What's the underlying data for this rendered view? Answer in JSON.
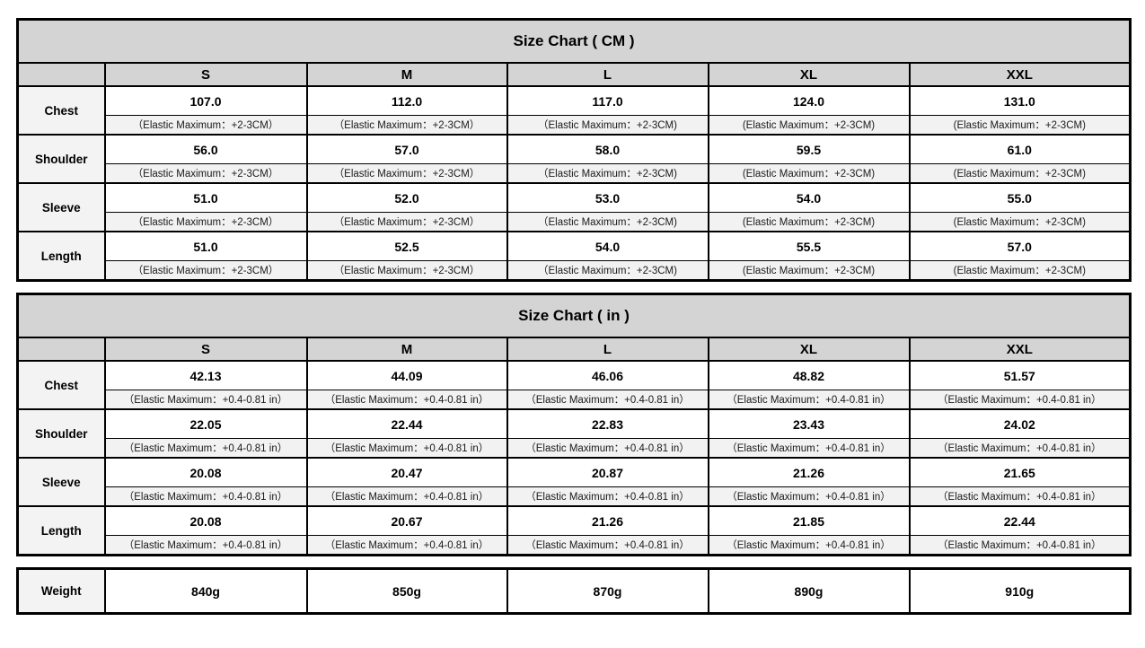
{
  "colors": {
    "header_bg": "#d4d4d4",
    "note_bg": "#f2f2f2",
    "label_bg": "#f3f3f3",
    "border": "#000000",
    "page_bg": "#ffffff"
  },
  "sizes": [
    "S",
    "M",
    "L",
    "XL",
    "XXL"
  ],
  "tables": [
    {
      "id": "cm",
      "title": "Size Chart ( CM )",
      "notes": [
        "（Elastic Maximum：+2-3CM）",
        "（Elastic Maximum：+2-3CM）",
        "（Elastic Maximum：+2-3CM)",
        "(Elastic Maximum：+2-3CM)",
        "(Elastic Maximum：+2-3CM)"
      ],
      "rows": [
        {
          "label": "Chest",
          "values": [
            "107.0",
            "112.0",
            "117.0",
            "124.0",
            "131.0"
          ]
        },
        {
          "label": "Shoulder",
          "values": [
            "56.0",
            "57.0",
            "58.0",
            "59.5",
            "61.0"
          ]
        },
        {
          "label": "Sleeve",
          "values": [
            "51.0",
            "52.0",
            "53.0",
            "54.0",
            "55.0"
          ]
        },
        {
          "label": "Length",
          "values": [
            "51.0",
            "52.5",
            "54.0",
            "55.5",
            "57.0"
          ]
        }
      ]
    },
    {
      "id": "in",
      "title": "Size Chart ( in )",
      "notes": [
        "（Elastic Maximum：+0.4-0.81 in）",
        "（Elastic Maximum：+0.4-0.81 in）",
        "（Elastic Maximum：+0.4-0.81 in）",
        "（Elastic Maximum：+0.4-0.81 in）",
        "（Elastic Maximum：+0.4-0.81 in）"
      ],
      "rows": [
        {
          "label": "Chest",
          "values": [
            "42.13",
            "44.09",
            "46.06",
            "48.82",
            "51.57"
          ]
        },
        {
          "label": "Shoulder",
          "values": [
            "22.05",
            "22.44",
            "22.83",
            "23.43",
            "24.02"
          ]
        },
        {
          "label": "Sleeve",
          "values": [
            "20.08",
            "20.47",
            "20.87",
            "21.26",
            "21.65"
          ]
        },
        {
          "label": "Length",
          "values": [
            "20.08",
            "20.67",
            "21.26",
            "21.85",
            "22.44"
          ]
        }
      ]
    }
  ],
  "weight": {
    "label": "Weight",
    "values": [
      "840g",
      "850g",
      "870g",
      "890g",
      "910g"
    ]
  }
}
